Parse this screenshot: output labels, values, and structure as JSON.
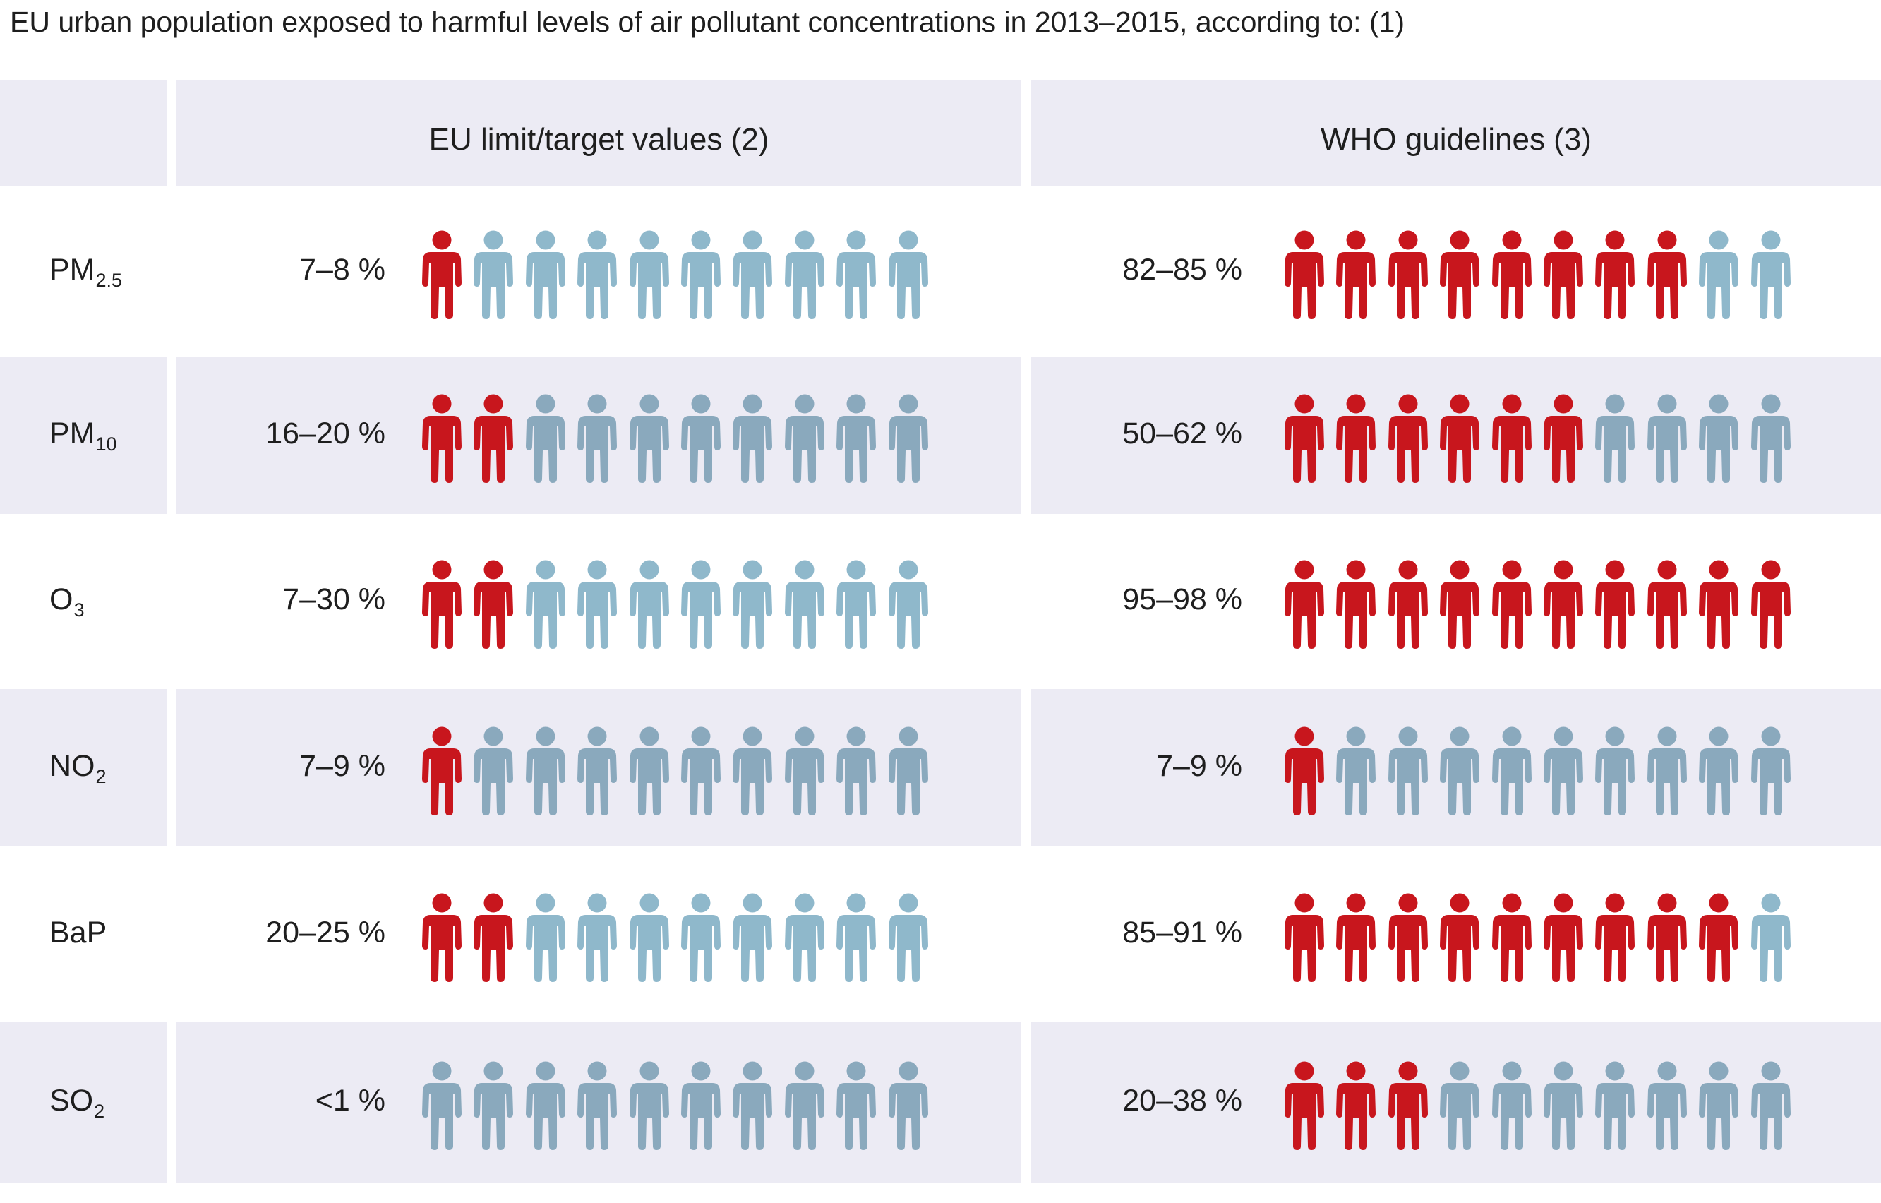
{
  "title": "EU urban population exposed to harmful levels of air pollutant concentrations in 2013–2015, according to: (1)",
  "colors": {
    "exposed": "#c8161d",
    "not_exposed": "#8fb8cb",
    "not_exposed_alt": "#8aa9bd",
    "band": "#ecebf4",
    "separator": "#ffffff",
    "text": "#1e1e1e"
  },
  "icon_name": "person-icon",
  "chart_data": {
    "type": "table",
    "unit": "%",
    "figures_per_row": 10,
    "columns": [
      {
        "key": "eu",
        "label": "EU limit/target values (2)"
      },
      {
        "key": "who",
        "label": "WHO guidelines (3)"
      }
    ],
    "rows": [
      {
        "pollutant": "PM",
        "sub": "2.5",
        "eu": {
          "label": "7–8 %",
          "exposed_figures": 1
        },
        "who": {
          "label": "82–85 %",
          "exposed_figures": 8
        }
      },
      {
        "pollutant": "PM",
        "sub": "10",
        "eu": {
          "label": "16–20 %",
          "exposed_figures": 2
        },
        "who": {
          "label": "50–62 %",
          "exposed_figures": 6
        }
      },
      {
        "pollutant": "O",
        "sub": "3",
        "eu": {
          "label": "7–30 %",
          "exposed_figures": 2
        },
        "who": {
          "label": "95–98 %",
          "exposed_figures": 10
        }
      },
      {
        "pollutant": "NO",
        "sub": "2",
        "eu": {
          "label": "7–9 %",
          "exposed_figures": 1
        },
        "who": {
          "label": "7–9 %",
          "exposed_figures": 1
        }
      },
      {
        "pollutant": "BaP",
        "sub": "",
        "eu": {
          "label": "20–25 %",
          "exposed_figures": 2
        },
        "who": {
          "label": "85–91 %",
          "exposed_figures": 9
        }
      },
      {
        "pollutant": "SO",
        "sub": "2",
        "eu": {
          "label": "<1 %",
          "exposed_figures": 0
        },
        "who": {
          "label": "20–38 %",
          "exposed_figures": 3
        }
      }
    ]
  }
}
